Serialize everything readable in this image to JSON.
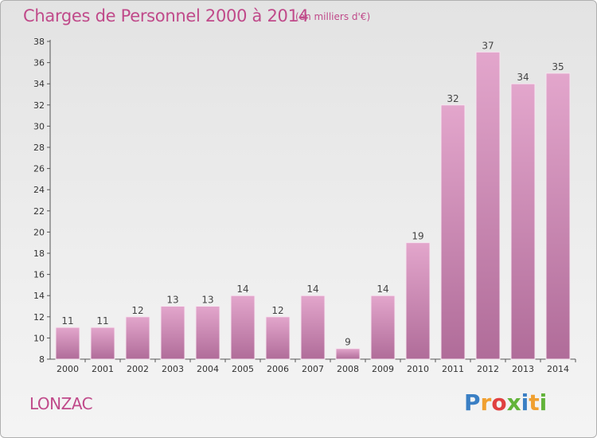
{
  "header": {
    "title": "Charges de Personnel 2000 à 2014",
    "subtitle": "(en milliers d'€)"
  },
  "footer": {
    "place": "LONZAC",
    "logo": "Proxiti"
  },
  "colors": {
    "bar_top": "#e3a6cc",
    "bar_bottom": "#b06c99",
    "text_accent": "#c04a8a"
  },
  "chart_data": {
    "type": "bar",
    "title": "Charges de Personnel 2000 à 2014",
    "subtitle": "(en milliers d'€)",
    "categories": [
      "2000",
      "2001",
      "2002",
      "2003",
      "2004",
      "2005",
      "2006",
      "2007",
      "2008",
      "2009",
      "2010",
      "2011",
      "2012",
      "2013",
      "2014"
    ],
    "values": [
      11,
      11,
      12,
      13,
      13,
      14,
      12,
      14,
      9,
      14,
      19,
      32,
      37,
      34,
      35
    ],
    "ylim": [
      8,
      38
    ],
    "yticks": [
      8,
      10,
      12,
      14,
      16,
      18,
      20,
      22,
      24,
      26,
      28,
      30,
      32,
      34,
      36,
      38
    ],
    "grid": false,
    "data_labels": true
  }
}
